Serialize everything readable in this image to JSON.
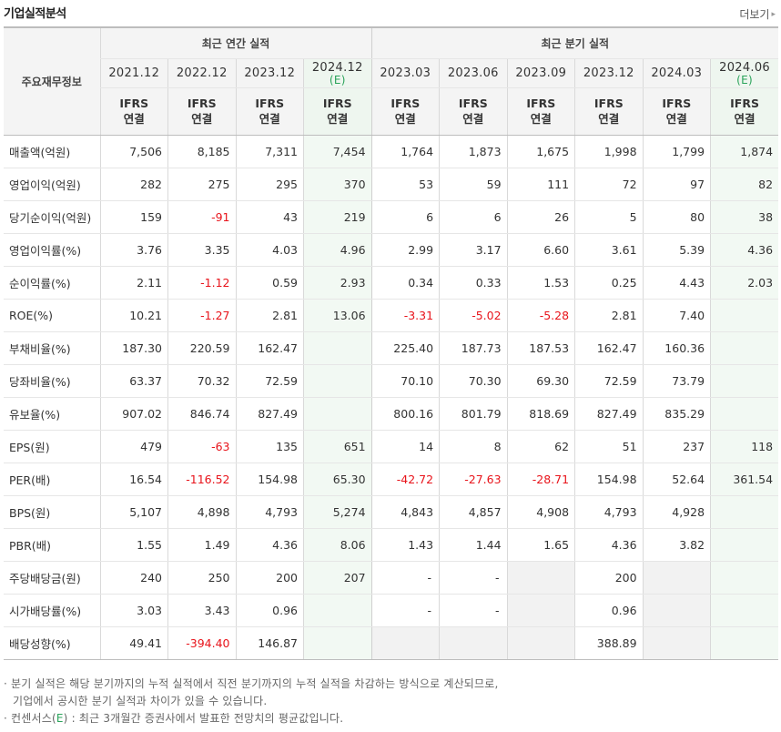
{
  "page": {
    "title": "기업실적분석",
    "more_label": "더보기",
    "more_arrow": "▸"
  },
  "table": {
    "label_header": "주요재무정보",
    "group_annual": "최근 연간 실적",
    "group_quarter": "최근 분기 실적",
    "ifrs_line1": "IFRS",
    "ifrs_line2": "연결",
    "estimate_mark": "(E)",
    "columns": [
      {
        "period": "2021.12",
        "estimate": false,
        "estimate_label": ""
      },
      {
        "period": "2022.12",
        "estimate": false,
        "estimate_label": ""
      },
      {
        "period": "2023.12",
        "estimate": false,
        "estimate_label": ""
      },
      {
        "period": "2024.12",
        "estimate": true,
        "estimate_label": "(E)"
      },
      {
        "period": "2023.03",
        "estimate": false,
        "estimate_label": ""
      },
      {
        "period": "2023.06",
        "estimate": false,
        "estimate_label": ""
      },
      {
        "period": "2023.09",
        "estimate": false,
        "estimate_label": ""
      },
      {
        "period": "2023.12",
        "estimate": false,
        "estimate_label": ""
      },
      {
        "period": "2024.03",
        "estimate": false,
        "estimate_label": ""
      },
      {
        "period": "2024.06",
        "estimate": true,
        "estimate_label": "(E)"
      }
    ],
    "rows": [
      {
        "label": "매출액(억원)",
        "group_start": true,
        "values": [
          "7,506",
          "8,185",
          "7,311",
          "7,454",
          "1,764",
          "1,873",
          "1,675",
          "1,998",
          "1,799",
          "1,874"
        ]
      },
      {
        "label": "영업이익(억원)",
        "group_start": false,
        "values": [
          "282",
          "275",
          "295",
          "370",
          "53",
          "59",
          "111",
          "72",
          "97",
          "82"
        ]
      },
      {
        "label": "당기순이익(억원)",
        "group_start": false,
        "values": [
          "159",
          "-91",
          "43",
          "219",
          "6",
          "6",
          "26",
          "5",
          "80",
          "38"
        ]
      },
      {
        "label": "영업이익률(%)",
        "group_start": true,
        "values": [
          "3.76",
          "3.35",
          "4.03",
          "4.96",
          "2.99",
          "3.17",
          "6.60",
          "3.61",
          "5.39",
          "4.36"
        ]
      },
      {
        "label": "순이익률(%)",
        "group_start": false,
        "values": [
          "2.11",
          "-1.12",
          "0.59",
          "2.93",
          "0.34",
          "0.33",
          "1.53",
          "0.25",
          "4.43",
          "2.03"
        ]
      },
      {
        "label": "ROE(%)",
        "group_start": false,
        "values": [
          "10.21",
          "-1.27",
          "2.81",
          "13.06",
          "-3.31",
          "-5.02",
          "-5.28",
          "2.81",
          "7.40",
          ""
        ]
      },
      {
        "label": "부채비율(%)",
        "group_start": true,
        "values": [
          "187.30",
          "220.59",
          "162.47",
          "",
          "225.40",
          "187.73",
          "187.53",
          "162.47",
          "160.36",
          ""
        ]
      },
      {
        "label": "당좌비율(%)",
        "group_start": false,
        "values": [
          "63.37",
          "70.32",
          "72.59",
          "",
          "70.10",
          "70.30",
          "69.30",
          "72.59",
          "73.79",
          ""
        ]
      },
      {
        "label": "유보율(%)",
        "group_start": false,
        "values": [
          "907.02",
          "846.74",
          "827.49",
          "",
          "800.16",
          "801.79",
          "818.69",
          "827.49",
          "835.29",
          ""
        ]
      },
      {
        "label": "EPS(원)",
        "group_start": true,
        "values": [
          "479",
          "-63",
          "135",
          "651",
          "14",
          "8",
          "62",
          "51",
          "237",
          "118"
        ]
      },
      {
        "label": "PER(배)",
        "group_start": false,
        "values": [
          "16.54",
          "-116.52",
          "154.98",
          "65.30",
          "-42.72",
          "-27.63",
          "-28.71",
          "154.98",
          "52.64",
          "361.54"
        ]
      },
      {
        "label": "BPS(원)",
        "group_start": false,
        "values": [
          "5,107",
          "4,898",
          "4,793",
          "5,274",
          "4,843",
          "4,857",
          "4,908",
          "4,793",
          "4,928",
          ""
        ]
      },
      {
        "label": "PBR(배)",
        "group_start": false,
        "values": [
          "1.55",
          "1.49",
          "4.36",
          "8.06",
          "1.43",
          "1.44",
          "1.65",
          "4.36",
          "3.82",
          ""
        ]
      },
      {
        "label": "주당배당금(원)",
        "group_start": true,
        "values": [
          "240",
          "250",
          "200",
          "207",
          "-",
          "-",
          "",
          "200",
          "",
          ""
        ]
      },
      {
        "label": "시가배당률(%)",
        "group_start": false,
        "values": [
          "3.03",
          "3.43",
          "0.96",
          "",
          "-",
          "-",
          "",
          "0.96",
          "",
          ""
        ]
      },
      {
        "label": "배당성향(%)",
        "group_start": false,
        "values": [
          "49.41",
          "-394.40",
          "146.87",
          "",
          "",
          "",
          "",
          "388.89",
          "",
          ""
        ]
      }
    ]
  },
  "notes": {
    "line1": "· 분기 실적은 해당 분기까지의 누적 실적에서 직전 분기까지의 누적 실적을 차감하는 방식으로 계산되므로,",
    "line2": "기업에서 공시한 분기 실적과 차이가 있을 수 있습니다.",
    "line3_prefix": "· 컨센서스(",
    "line3_mark": "E",
    "line3_suffix": ") : 최근 3개월간 증권사에서 발표한 전망치의 평균값입니다."
  },
  "colors": {
    "negative": "#e8141b",
    "estimate_text": "#2aa35a",
    "estimate_bg": "#f2f9f3",
    "ifrs_text": "#f07a1a",
    "header_bg": "#f4f4f4",
    "empty_bg": "#f2f2f2"
  }
}
